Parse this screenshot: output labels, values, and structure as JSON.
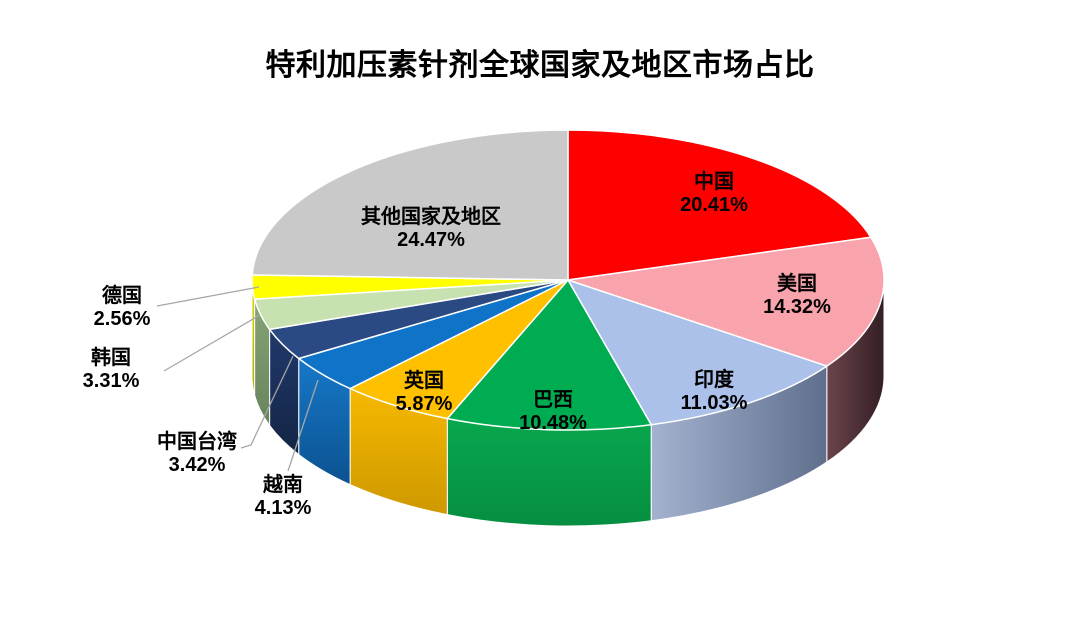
{
  "page": {
    "background": "#FFFFFF"
  },
  "header": {
    "title": "特利加压素针剂全球国家及地区市场占比"
  },
  "chart_data": {
    "type": "pie",
    "projection": "3d",
    "title": "特利加压素针剂全球国家及地区市场占比",
    "legend": "none",
    "start_angle": "top",
    "direction": "clockwise",
    "labels_format": "name + percent",
    "label_color": "#000000",
    "leader_line_color": "#A6A6A6",
    "background": "#FFFFFF",
    "slices": [
      {
        "id": "china",
        "label": "中国",
        "value": 20.41,
        "display": "20.41%",
        "color": "#FF0000",
        "side": [
          "#A00000",
          "#7A0000"
        ]
      },
      {
        "id": "usa",
        "label": "美国",
        "value": 14.32,
        "display": "14.32%",
        "color": "#F9A3AD",
        "side": [
          "#6B444C",
          "#331F24"
        ],
        "side_dir": "h"
      },
      {
        "id": "india",
        "label": "印度",
        "value": 11.03,
        "display": "11.03%",
        "color": "#ACC1EA",
        "side": [
          "#A4B2D0",
          "#5F6F8C"
        ],
        "side_dir": "h"
      },
      {
        "id": "brazil",
        "label": "巴西",
        "value": 10.48,
        "display": "10.48%",
        "color": "#00AC51",
        "side": [
          "#08A74E",
          "#058E41"
        ]
      },
      {
        "id": "uk",
        "label": "英国",
        "value": 5.87,
        "display": "5.87%",
        "color": "#FFC000",
        "side": [
          "#F6B900",
          "#CE9800"
        ]
      },
      {
        "id": "vietnam",
        "label": "越南",
        "value": 4.13,
        "display": "4.13%",
        "color": "#0F74C8",
        "side": [
          "#1778C8",
          "#0B5290"
        ]
      },
      {
        "id": "taiwan-china",
        "label": "中国台湾",
        "value": 3.42,
        "display": "3.42%",
        "color": "#2B4A84",
        "side": [
          "#21396B",
          "#132545"
        ]
      },
      {
        "id": "south-korea",
        "label": "韩国",
        "value": 3.31,
        "display": "3.31%",
        "color": "#C7E1B0",
        "side": [
          "#87A478",
          "#67835B"
        ]
      },
      {
        "id": "germany",
        "label": "德国",
        "value": 2.56,
        "display": "2.56%",
        "color": "#FFFF00",
        "side": [
          "#D9D900",
          "#AEAE00"
        ]
      },
      {
        "id": "others",
        "label": "其他国家及地区",
        "value": 24.47,
        "display": "24.47%",
        "color": "#C9C9C9",
        "side": [
          "#9B9B9B",
          "#858585"
        ]
      }
    ]
  }
}
